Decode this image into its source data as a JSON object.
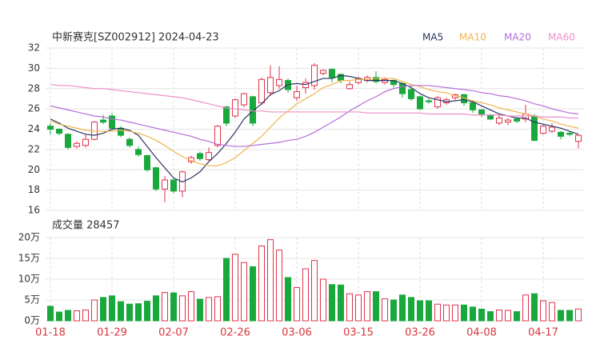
{
  "chart_data": [
    {
      "type": "candlestick",
      "title": "中新赛克[SZ002912] 2024-04-23",
      "categories": [
        "01-18",
        null,
        null,
        null,
        null,
        null,
        null,
        "01-29",
        null,
        null,
        null,
        null,
        null,
        null,
        "02-07",
        null,
        null,
        null,
        null,
        null,
        null,
        "02-26",
        null,
        null,
        null,
        null,
        null,
        null,
        "03-06",
        null,
        null,
        null,
        null,
        null,
        null,
        "03-15",
        null,
        null,
        null,
        null,
        null,
        null,
        "03-26",
        null,
        null,
        null,
        null,
        null,
        null,
        "04-08",
        null,
        null,
        null,
        null,
        null,
        null,
        "04-17",
        null,
        null,
        null,
        null
      ],
      "open": [
        24.3,
        24.0,
        23.5,
        22.3,
        22.4,
        23.0,
        24.9,
        25.3,
        24.1,
        23.0,
        22.0,
        21.4,
        20.2,
        18.1,
        19.0,
        17.9,
        20.8,
        21.6,
        21.0,
        22.4,
        26.2,
        25.3,
        26.4,
        27.2,
        26.6,
        27.6,
        28.3,
        28.8,
        27.1,
        28.1,
        28.3,
        29.5,
        29.9,
        29.4,
        28.0,
        28.6,
        28.8,
        29.1,
        28.6,
        28.8,
        28.5,
        27.9,
        27.2,
        26.8,
        26.2,
        26.6,
        27.1,
        27.4,
        26.6,
        25.9,
        25.4,
        24.6,
        24.7,
        25.0,
        25.0,
        25.3,
        23.6,
        23.8,
        23.7,
        23.6,
        22.8
      ],
      "high": [
        24.6,
        24.1,
        23.6,
        22.8,
        23.5,
        24.8,
        25.4,
        25.6,
        24.3,
        23.2,
        22.3,
        21.5,
        20.3,
        19.4,
        19.1,
        19.9,
        21.4,
        21.8,
        22.2,
        24.4,
        26.3,
        27.0,
        27.6,
        27.3,
        29.1,
        30.3,
        30.2,
        29.0,
        28.3,
        29.0,
        30.5,
        29.9,
        30.0,
        29.5,
        28.7,
        29.2,
        29.3,
        29.7,
        29.1,
        28.9,
        28.6,
        28.2,
        27.3,
        27.0,
        27.3,
        27.1,
        27.5,
        27.5,
        26.7,
        26.0,
        25.5,
        25.4,
        25.1,
        25.2,
        26.4,
        25.5,
        24.5,
        24.6,
        23.8,
        23.8,
        23.5
      ],
      "low": [
        23.5,
        23.4,
        22.0,
        22.1,
        22.2,
        22.9,
        24.5,
        23.9,
        23.2,
        22.2,
        21.3,
        19.8,
        17.9,
        16.8,
        17.7,
        17.3,
        20.6,
        20.9,
        20.9,
        22.2,
        24.3,
        25.1,
        26.2,
        24.3,
        26.4,
        27.3,
        28.0,
        27.6,
        26.8,
        27.5,
        27.9,
        29.3,
        28.6,
        28.5,
        27.9,
        28.4,
        28.6,
        28.5,
        28.4,
        28.1,
        27.1,
        26.8,
        25.9,
        26.5,
        26.0,
        26.4,
        26.9,
        26.3,
        25.6,
        25.2,
        24.9,
        24.4,
        24.4,
        24.6,
        24.7,
        22.8,
        23.5,
        23.6,
        23.0,
        23.3,
        22.1
      ],
      "close": [
        24.0,
        23.6,
        22.2,
        22.6,
        23.0,
        24.7,
        24.7,
        24.1,
        23.4,
        22.4,
        21.5,
        20.0,
        18.1,
        19.0,
        17.9,
        19.8,
        21.2,
        21.1,
        21.7,
        24.3,
        24.6,
        26.9,
        27.5,
        24.6,
        28.9,
        29.1,
        28.9,
        27.9,
        27.7,
        28.6,
        30.3,
        29.8,
        29.1,
        28.8,
        28.4,
        29.0,
        29.1,
        28.7,
        28.9,
        28.4,
        27.5,
        27.0,
        26.0,
        26.7,
        27.1,
        26.9,
        27.4,
        26.6,
        25.9,
        25.5,
        25.0,
        25.1,
        24.9,
        24.8,
        25.5,
        22.9,
        24.3,
        24.2,
        23.3,
        23.5,
        23.4
      ],
      "up_color": "#e0334a",
      "down_color": "#18a83c",
      "ylim": [
        16,
        32
      ],
      "yticks": [
        16,
        18,
        20,
        22,
        24,
        26,
        28,
        30,
        32
      ],
      "grid": true,
      "series": [
        {
          "name": "MA5",
          "color": "#2c3565",
          "values": [
            25.0,
            24.6,
            24.1,
            23.8,
            23.5,
            23.4,
            23.6,
            24.0,
            24.1,
            23.9,
            23.4,
            22.3,
            21.2,
            20.2,
            19.2,
            18.8,
            19.2,
            19.8,
            20.8,
            21.6,
            22.6,
            23.7,
            25.0,
            25.8,
            26.5,
            27.4,
            27.8,
            28.4,
            28.5,
            28.4,
            28.7,
            29.0,
            29.0,
            29.3,
            29.2,
            29.0,
            28.8,
            28.8,
            28.8,
            28.8,
            28.5,
            28.1,
            27.5,
            27.1,
            26.9,
            26.7,
            26.8,
            26.9,
            26.7,
            26.3,
            25.9,
            25.5,
            25.3,
            25.1,
            25.1,
            24.7,
            24.5,
            24.3,
            24.1,
            23.8,
            23.5
          ]
        },
        {
          "name": "MA10",
          "color": "#f0b44b",
          "values": [
            24.8,
            24.5,
            24.3,
            24.1,
            23.9,
            23.8,
            23.8,
            23.8,
            23.9,
            23.8,
            23.6,
            23.3,
            22.9,
            22.4,
            21.8,
            21.3,
            20.9,
            20.6,
            20.4,
            20.4,
            20.7,
            21.2,
            21.9,
            22.6,
            23.3,
            24.2,
            25.1,
            25.8,
            26.5,
            27.0,
            27.5,
            28.1,
            28.4,
            28.8,
            28.8,
            28.9,
            28.9,
            29.0,
            29.0,
            29.0,
            28.7,
            28.4,
            28.2,
            27.9,
            27.7,
            27.6,
            27.3,
            27.1,
            26.8,
            26.6,
            26.4,
            26.1,
            25.9,
            25.7,
            25.5,
            25.3,
            25.0,
            24.8,
            24.5,
            24.3,
            24.1
          ]
        },
        {
          "name": "MA20",
          "color": "#b46fd8",
          "values": [
            26.3,
            26.1,
            25.9,
            25.7,
            25.5,
            25.3,
            25.2,
            25.0,
            24.9,
            24.7,
            24.5,
            24.3,
            24.1,
            23.9,
            23.7,
            23.5,
            23.3,
            23.0,
            22.8,
            22.5,
            22.4,
            22.3,
            22.3,
            22.4,
            22.5,
            22.6,
            22.7,
            22.9,
            23.0,
            23.3,
            23.7,
            24.2,
            24.7,
            25.2,
            25.8,
            26.3,
            26.8,
            27.2,
            27.7,
            28.0,
            28.2,
            28.3,
            28.3,
            28.3,
            28.2,
            28.1,
            28.0,
            27.9,
            27.8,
            27.6,
            27.5,
            27.3,
            27.2,
            27.0,
            26.8,
            26.5,
            26.3,
            26.0,
            25.8,
            25.6,
            25.5
          ]
        },
        {
          "name": "MA60",
          "color": "#ec8fc8",
          "values": [
            28.4,
            28.3,
            28.3,
            28.2,
            28.1,
            28.0,
            28.0,
            27.9,
            27.8,
            27.7,
            27.6,
            27.5,
            27.4,
            27.3,
            27.2,
            27.1,
            26.9,
            26.7,
            26.5,
            26.3,
            26.1,
            26.0,
            25.9,
            25.8,
            25.8,
            25.7,
            25.7,
            25.7,
            25.7,
            25.7,
            25.7,
            25.7,
            25.7,
            25.7,
            25.7,
            25.7,
            25.6,
            25.6,
            25.6,
            25.6,
            25.6,
            25.6,
            25.6,
            25.5,
            25.5,
            25.5,
            25.5,
            25.5,
            25.4,
            25.4,
            25.4,
            25.4,
            25.3,
            25.3,
            25.3,
            25.3,
            25.2,
            25.2,
            25.2,
            25.1,
            25.1
          ]
        }
      ]
    },
    {
      "type": "bar",
      "title": "成交量 28457",
      "values": [
        3.5,
        2.1,
        2.5,
        2.4,
        2.6,
        5,
        5.6,
        6,
        4.6,
        4,
        4.1,
        4.7,
        6,
        6.8,
        6.7,
        6,
        7,
        5.2,
        5.6,
        5.8,
        15,
        16,
        14,
        13,
        18,
        19.5,
        17,
        10.4,
        8,
        12.5,
        14.5,
        10,
        8.7,
        8.6,
        6.5,
        6.2,
        7,
        7,
        5.3,
        5,
        6.2,
        5.6,
        4.8,
        4.8,
        4,
        3.8,
        3.8,
        3.8,
        3.3,
        2.8,
        2.2,
        2.6,
        2.5,
        2.2,
        6.2,
        6.5,
        4.8,
        4.4,
        2.5,
        2.5,
        2.8457
      ],
      "ylim": [
        0,
        20
      ],
      "yticks": [
        {
          "value": 0,
          "label": "0万"
        },
        {
          "value": 5,
          "label": "5万"
        },
        {
          "value": 10,
          "label": "10万"
        },
        {
          "value": 15,
          "label": "15万"
        },
        {
          "value": 20,
          "label": "20万"
        }
      ]
    }
  ]
}
